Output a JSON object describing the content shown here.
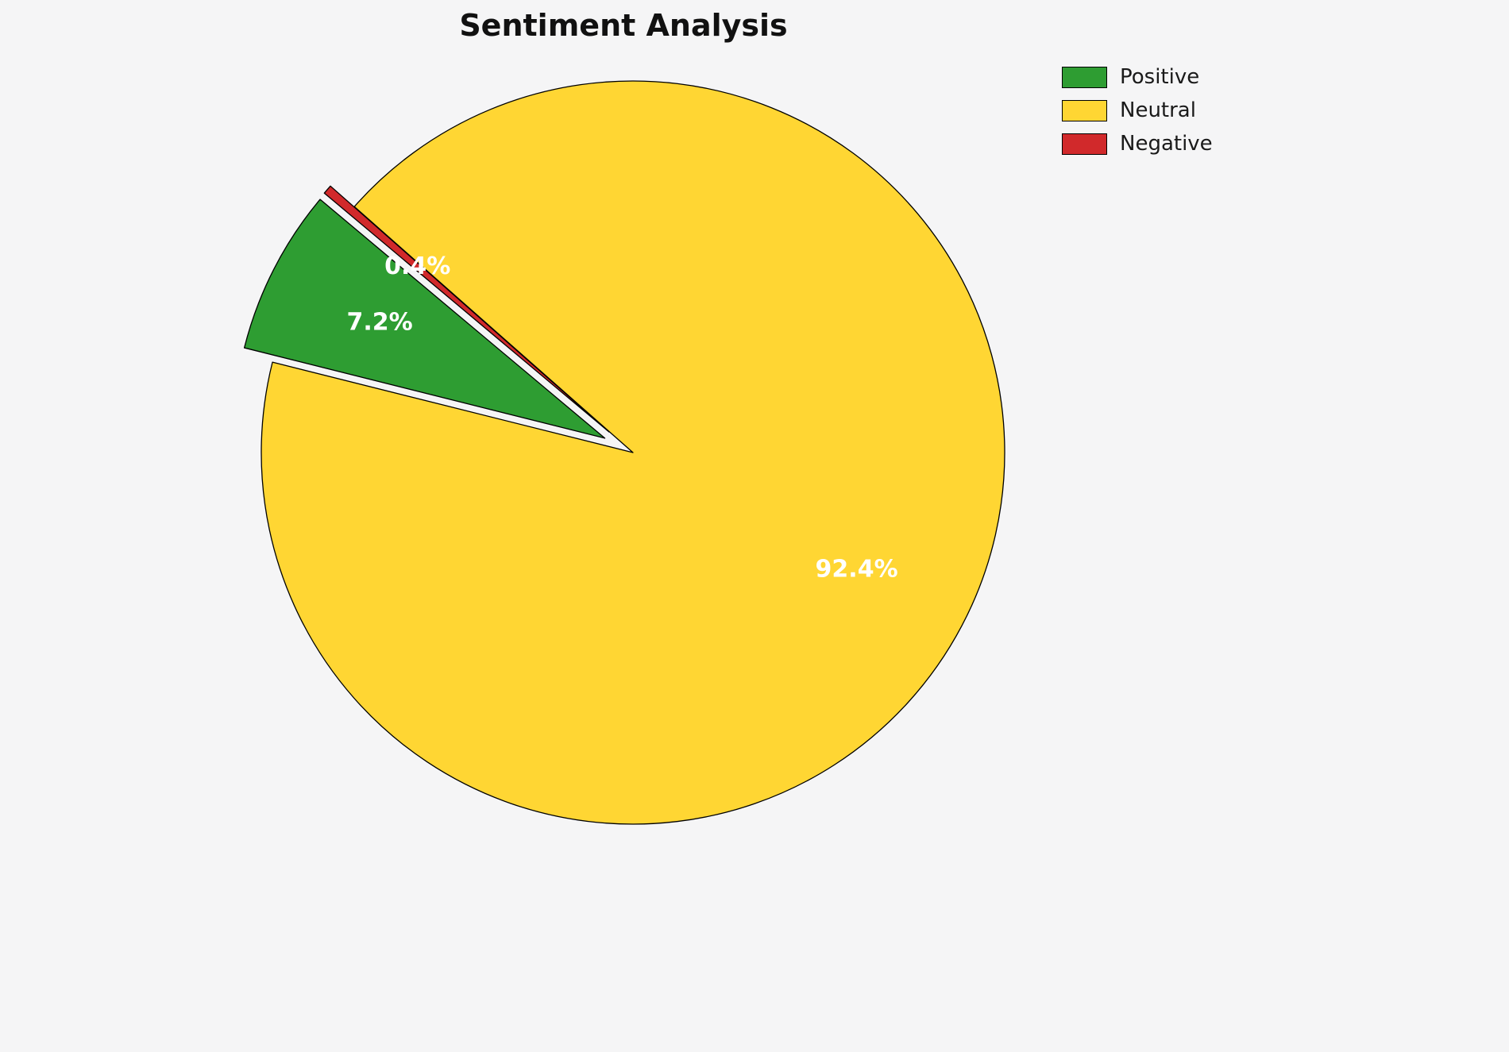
{
  "chart_data": {
    "type": "pie",
    "title": "Sentiment Analysis",
    "labels": [
      "Positive",
      "Neutral",
      "Negative"
    ],
    "values": [
      7.2,
      92.4,
      0.4
    ],
    "percent_labels": [
      "7.2%",
      "92.4%",
      "0.4%"
    ],
    "colors": [
      "#2e9d32",
      "#ffd633",
      "#d1292b"
    ],
    "explode": [
      0.085,
      0,
      0.085
    ],
    "start_angle": 140,
    "counterclockwise": true,
    "edge_color": "#000000",
    "label_color": "#ffffff",
    "legend_position": "upper right",
    "background": "#f5f5f6"
  }
}
